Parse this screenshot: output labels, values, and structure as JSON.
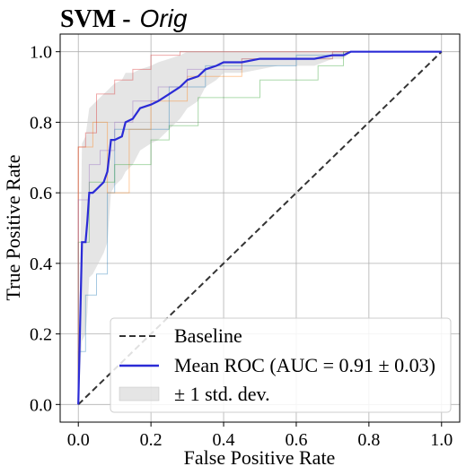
{
  "chart_data": {
    "type": "line",
    "title_bold": "SVM -",
    "title_italic": "Orig",
    "xlabel": "False Positive Rate",
    "ylabel": "True Positive Rate",
    "xlim": [
      -0.05,
      1.05
    ],
    "ylim": [
      -0.05,
      1.05
    ],
    "xticks": [
      "0.0",
      "0.2",
      "0.4",
      "0.6",
      "0.8",
      "1.0"
    ],
    "yticks": [
      "0.0",
      "0.2",
      "0.4",
      "0.6",
      "0.8",
      "1.0"
    ],
    "grid": true,
    "legend_position": "lower-right",
    "colors": {
      "baseline": "#333333",
      "mean": "#2b2bd6",
      "band": "#d3d3d3",
      "fold1": "#1f77b4",
      "fold2": "#ff7f0e",
      "fold3": "#2ca02c",
      "fold4": "#d62728",
      "fold5": "#9467bd"
    },
    "legend": [
      {
        "label": "Baseline",
        "kind": "dashed"
      },
      {
        "label": "Mean ROC (AUC = 0.91 ± 0.03)",
        "kind": "line"
      },
      {
        "label": "± 1 std. dev.",
        "kind": "patch"
      }
    ],
    "baseline": {
      "x": [
        0,
        1
      ],
      "y": [
        0,
        1
      ]
    },
    "mean_roc": {
      "x": [
        0,
        0.01,
        0.02,
        0.025,
        0.03,
        0.04,
        0.05,
        0.07,
        0.08,
        0.09,
        0.1,
        0.12,
        0.13,
        0.15,
        0.17,
        0.2,
        0.22,
        0.25,
        0.28,
        0.3,
        0.33,
        0.35,
        0.38,
        0.4,
        0.45,
        0.5,
        0.55,
        0.6,
        0.65,
        0.7,
        0.73,
        0.75,
        0.8,
        0.9,
        1.0
      ],
      "y": [
        0,
        0.46,
        0.46,
        0.52,
        0.6,
        0.6,
        0.61,
        0.63,
        0.66,
        0.75,
        0.75,
        0.76,
        0.8,
        0.81,
        0.84,
        0.85,
        0.86,
        0.88,
        0.9,
        0.92,
        0.93,
        0.95,
        0.96,
        0.97,
        0.97,
        0.98,
        0.98,
        0.98,
        0.98,
        0.99,
        0.99,
        1.0,
        1.0,
        1.0,
        1.0
      ]
    },
    "std_upper": [
      0,
      0.74,
      0.76,
      0.8,
      0.84,
      0.85,
      0.86,
      0.88,
      0.89,
      0.9,
      0.91,
      0.92,
      0.94,
      0.94,
      0.95,
      0.96,
      0.97,
      0.98,
      0.99,
      1.0,
      1.0,
      1.0,
      1.0,
      1.0,
      1.0,
      1.0,
      1.0,
      1.0,
      1.0,
      1.0,
      1.0,
      1.0,
      1.0,
      1.0,
      1.0
    ],
    "std_lower": [
      0,
      0.18,
      0.2,
      0.26,
      0.36,
      0.37,
      0.39,
      0.43,
      0.46,
      0.6,
      0.62,
      0.64,
      0.66,
      0.68,
      0.72,
      0.74,
      0.75,
      0.78,
      0.81,
      0.84,
      0.86,
      0.9,
      0.92,
      0.94,
      0.94,
      0.95,
      0.96,
      0.96,
      0.96,
      0.98,
      0.98,
      1.0,
      1.0,
      1.0,
      1.0
    ],
    "folds": [
      {
        "x": [
          0,
          0.0,
          0.02,
          0.02,
          0.05,
          0.05,
          0.08,
          0.08,
          0.1,
          0.1,
          0.25,
          0.25,
          0.35,
          0.35,
          0.6,
          0.6,
          0.73,
          0.73,
          1.0
        ],
        "y": [
          0,
          0.15,
          0.15,
          0.31,
          0.31,
          0.37,
          0.37,
          0.6,
          0.6,
          0.78,
          0.78,
          0.9,
          0.9,
          0.96,
          0.96,
          0.99,
          0.99,
          1.0,
          1.0
        ]
      },
      {
        "x": [
          0,
          0.0,
          0.04,
          0.04,
          0.08,
          0.08,
          0.14,
          0.14,
          0.2,
          0.2,
          0.3,
          0.3,
          0.45,
          0.45,
          0.7,
          0.7,
          1.0
        ],
        "y": [
          0,
          0.73,
          0.73,
          0.8,
          0.8,
          0.6,
          0.6,
          0.78,
          0.78,
          0.86,
          0.86,
          0.93,
          0.93,
          0.98,
          0.98,
          1.0,
          1.0
        ]
      },
      {
        "x": [
          0,
          0.0,
          0.03,
          0.03,
          0.1,
          0.1,
          0.2,
          0.2,
          0.25,
          0.25,
          0.33,
          0.33,
          0.5,
          0.5,
          0.66,
          0.66,
          0.73,
          0.73,
          1.0
        ],
        "y": [
          0,
          0.46,
          0.46,
          0.63,
          0.63,
          0.68,
          0.68,
          0.75,
          0.75,
          0.79,
          0.79,
          0.87,
          0.87,
          0.92,
          0.92,
          0.96,
          0.96,
          1.0,
          1.0
        ]
      },
      {
        "x": [
          0,
          0.0,
          0.02,
          0.02,
          0.05,
          0.05,
          0.1,
          0.1,
          0.15,
          0.15,
          0.2,
          0.2,
          0.28,
          0.28,
          0.4,
          0.4,
          0.6,
          0.6,
          1.0
        ],
        "y": [
          0,
          0.73,
          0.73,
          0.77,
          0.77,
          0.88,
          0.88,
          0.92,
          0.92,
          0.95,
          0.95,
          0.99,
          0.99,
          1.0,
          1.0,
          1.0,
          1.0,
          1.0,
          1.0
        ]
      },
      {
        "x": [
          0,
          0.0,
          0.03,
          0.03,
          0.06,
          0.06,
          0.1,
          0.1,
          0.15,
          0.15,
          0.22,
          0.22,
          0.3,
          0.3,
          0.45,
          0.45,
          0.7,
          0.7,
          1.0
        ],
        "y": [
          0,
          0.58,
          0.58,
          0.68,
          0.68,
          0.72,
          0.72,
          0.8,
          0.8,
          0.86,
          0.86,
          0.9,
          0.9,
          0.95,
          0.95,
          0.98,
          0.98,
          1.0,
          1.0
        ]
      }
    ]
  }
}
